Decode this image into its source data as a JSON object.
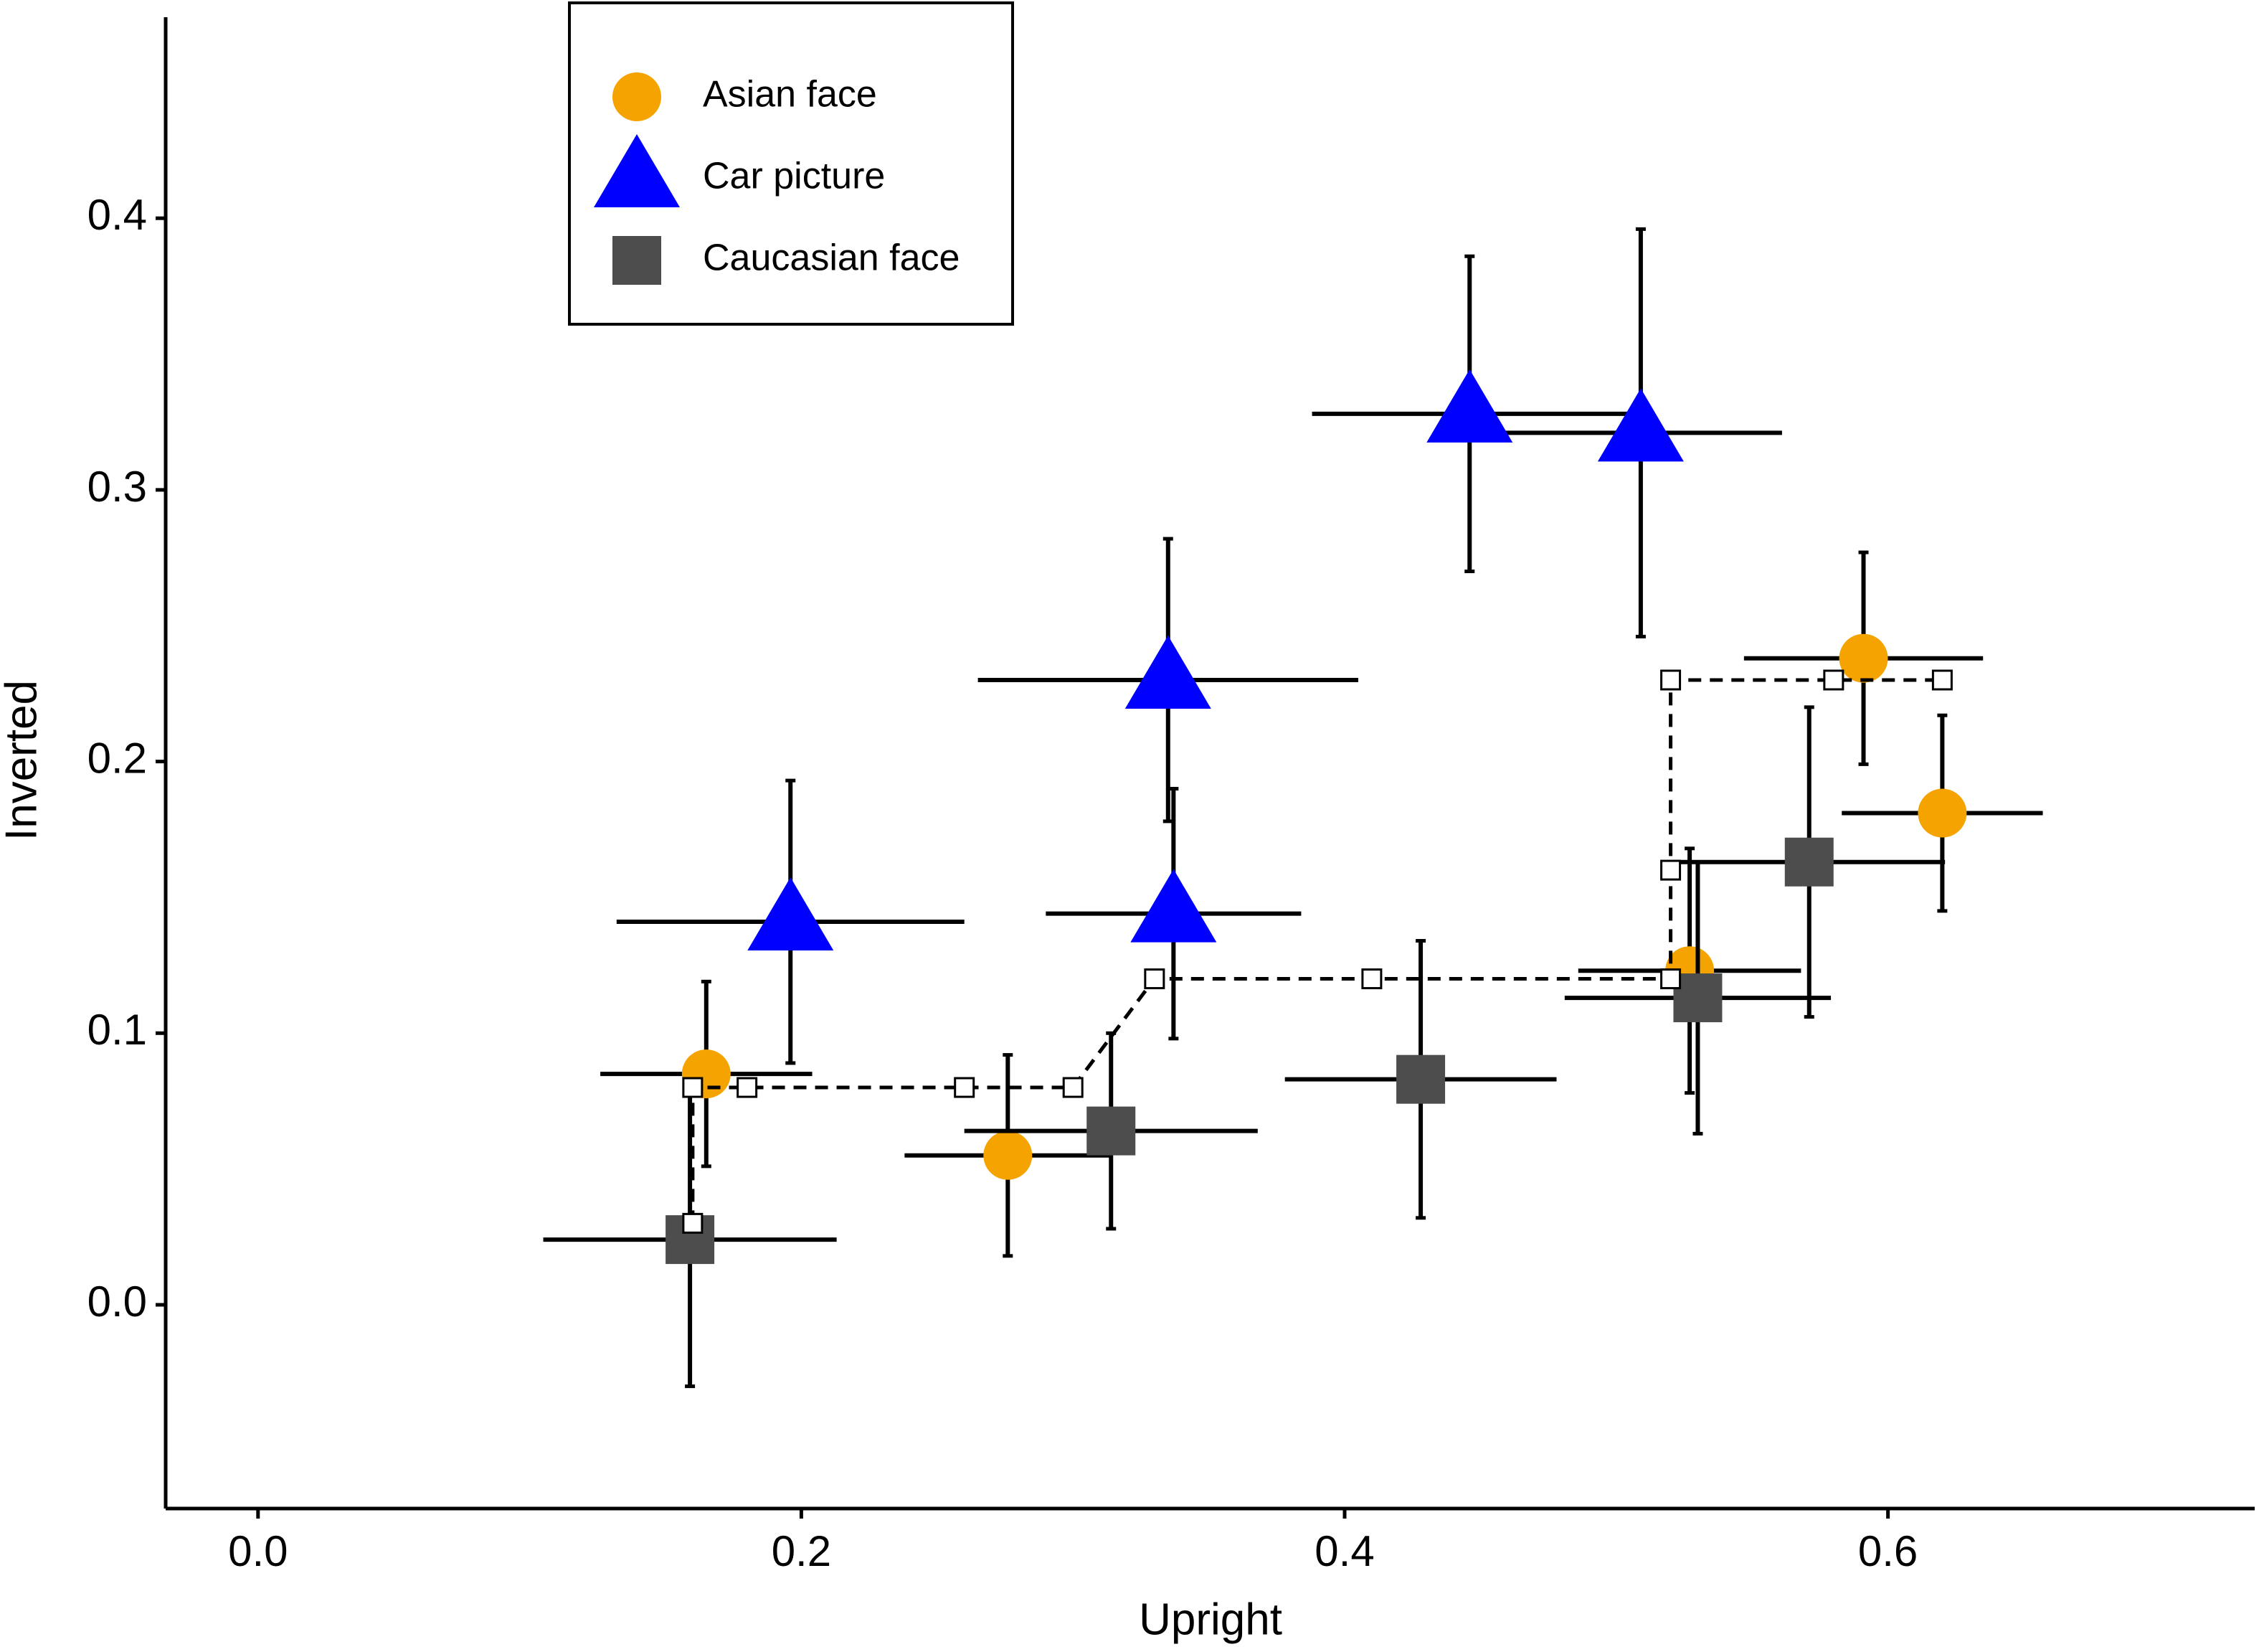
{
  "chart_data": {
    "type": "scatter",
    "x_label": "Upright",
    "y_label": "Inverted",
    "xlim": [
      -0.034,
      0.735
    ],
    "ylim": [
      -0.075,
      0.474
    ],
    "xticks": [
      {
        "value": 0,
        "label": "0.0"
      },
      0.2,
      0.4,
      0.6
    ],
    "yticks": [
      {
        "value": 0,
        "label": "0.0"
      },
      0.1,
      0.2,
      0.3,
      0.4
    ],
    "legend": "top-left",
    "series": [
      {
        "name": "Asian face",
        "color": "#f5a300",
        "marker": "circle",
        "x": [
          0.165,
          0.276,
          0.527,
          0.591,
          0.62
        ],
        "values": [
          0.085,
          0.055,
          0.123,
          0.238,
          0.181
        ],
        "x_err": [
          0.039,
          0.038,
          0.041,
          0.044,
          0.037
        ],
        "y_err": [
          0.034,
          0.037,
          0.045,
          0.039,
          0.036
        ]
      },
      {
        "name": "Car picture",
        "color": "#0000ff",
        "marker": "triangle",
        "x": [
          0.196,
          0.335,
          0.337,
          0.446,
          0.509
        ],
        "values": [
          0.141,
          0.23,
          0.144,
          0.328,
          0.321
        ],
        "x_err": [
          0.064,
          0.07,
          0.047,
          0.058,
          0.052
        ],
        "y_err": [
          0.052,
          0.052,
          0.046,
          0.058,
          0.075
        ]
      },
      {
        "name": "Caucasian face",
        "color": "#4d4d4d",
        "marker": "square",
        "x": [
          0.159,
          0.314,
          0.428,
          0.53,
          0.571
        ],
        "values": [
          0.024,
          0.064,
          0.083,
          0.113,
          0.163
        ],
        "x_err": [
          0.054,
          0.054,
          0.05,
          0.049,
          0.05
        ],
        "y_err": [
          0.054,
          0.036,
          0.051,
          0.05,
          0.057
        ]
      },
      {
        "color": "#000000",
        "marker": "open-square",
        "line": "dashed",
        "x": [
          0.16,
          0.16,
          0.18,
          0.26,
          0.3,
          0.33,
          0.41,
          0.52,
          0.52,
          0.52,
          0.58,
          0.62
        ],
        "values": [
          0.03,
          0.08,
          0.08,
          0.08,
          0.08,
          0.12,
          0.12,
          0.12,
          0.16,
          0.23,
          0.23,
          0.23
        ]
      }
    ]
  }
}
